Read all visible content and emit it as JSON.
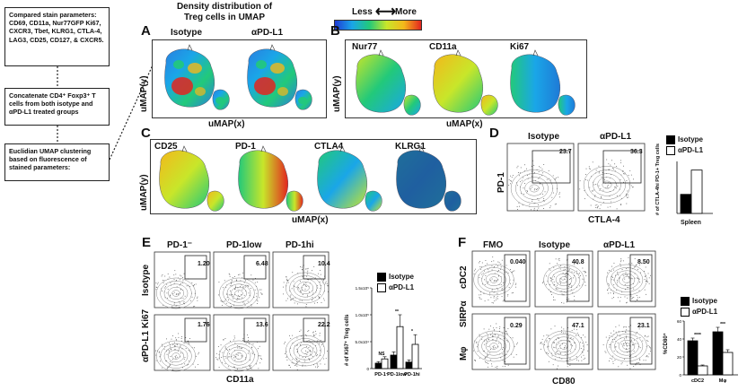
{
  "flow": {
    "box1": "Compared stain parameters: CD69, CD11a, Nur77GFP Ki67, CXCR3, Tbet, KLRG1, CTLA-4, LAG3, CD25, CD127, & CXCR5.",
    "box2": "Concatenate CD4⁺ Foxp3⁺ T cells from both isotype and αPD-L1 treated groups",
    "box3": "Euclidian UMAP clustering based on fluorescence of stained parameters:"
  },
  "header": {
    "density_title": "Density distribution of Treg cells in UMAP",
    "scale_less": "Less",
    "scale_more": "More",
    "scale_colors": [
      "#1f3bd6",
      "#1aa6e8",
      "#22c97a",
      "#c8e62a",
      "#f3b81b",
      "#e3251f"
    ]
  },
  "panelA": {
    "letter": "A",
    "titles": [
      "Isotype",
      "αPD-L1"
    ],
    "xlabel": "uMAP(x)",
    "ylabel": "uMAP(y)"
  },
  "panelB": {
    "letter": "B",
    "titles": [
      "Nur77",
      "CD11a",
      "Ki67"
    ],
    "xlabel": "uMAP(x)",
    "ylabel": "uMAP(y)"
  },
  "panelC": {
    "letter": "C",
    "titles": [
      "CD25",
      "PD-1",
      "CTLA4",
      "KLRG1"
    ],
    "xlabel": "uMAP(x)",
    "ylabel": "uMAP(y)"
  },
  "panelD": {
    "letter": "D",
    "titles": [
      "Isotype",
      "αPD-L1"
    ],
    "gates": [
      "23.7",
      "36.3"
    ],
    "xlabel": "CTLA-4",
    "ylabel": "PD-1",
    "legend": [
      "Isotype",
      "αPD-L1"
    ],
    "bar_ylabel": "# of CTLA-4hi PD-1+ Treg cells",
    "bar_xlabel": "Spleen"
  },
  "panelE": {
    "letter": "E",
    "col_titles": [
      "PD-1⁻",
      "PD-1low",
      "PD-1hi"
    ],
    "row_labels": [
      "Isotype",
      "αPD-L1"
    ],
    "gates_top": [
      "1.20",
      "6.48",
      "10.4"
    ],
    "gates_bottom": [
      "1.76",
      "13.6",
      "22.2"
    ],
    "xlabel": "CD11a",
    "ylabel": "Ki67",
    "legend": [
      "Isotype",
      "αPD-L1"
    ],
    "bar_ylabel": "# of Ki67⁺ Treg cells",
    "yticks": [
      "1.5x10⁵",
      "1.0x10⁵",
      "5.0x10⁴",
      "0"
    ],
    "categories": [
      "PD-1⁻",
      "PD-1low",
      "PD-1hi"
    ],
    "sig": [
      "NS",
      "**",
      "*"
    ]
  },
  "panelF": {
    "letter": "F",
    "col_titles": [
      "FMO",
      "Isotype",
      "αPD-L1"
    ],
    "row_labels": [
      "cDC2",
      "Mφ"
    ],
    "gates_top": [
      "0.040",
      "40.8",
      "8.50"
    ],
    "gates_bottom": [
      "0.29",
      "47.1",
      "23.1"
    ],
    "xlabel": "CD80",
    "ylabel": "SIRPα",
    "legend": [
      "Isotype",
      "αPD-L1"
    ],
    "bar_ylabel": "%CD80⁺",
    "yticks": [
      "60",
      "40",
      "20",
      "0"
    ],
    "categories": [
      "cDC2",
      "Mφ"
    ],
    "sig": [
      "****",
      "***"
    ]
  },
  "chart_data": [
    {
      "type": "bar",
      "categories": [
        "Spleen"
      ],
      "series": [
        {
          "name": "Isotype",
          "values": [
            2.2
          ]
        },
        {
          "name": "αPD-L1",
          "values": [
            5.0
          ]
        }
      ],
      "ylim": [
        0,
        6
      ],
      "xlabel": "Spleen",
      "ylabel": "# of CTLA-4hi PD-1+ Treg cells"
    },
    {
      "type": "bar",
      "categories": [
        "PD-1⁻",
        "PD-1low",
        "PD-1hi"
      ],
      "series": [
        {
          "name": "Isotype",
          "values": [
            10000,
            25000,
            12000
          ]
        },
        {
          "name": "αPD-L1",
          "values": [
            18000,
            78000,
            45000
          ]
        }
      ],
      "errors": [
        [
          3000,
          6000,
          4000
        ],
        [
          4000,
          22000,
          18000
        ]
      ],
      "ylim": [
        0,
        150000
      ],
      "ylabel": "# of Ki67⁺ Treg cells"
    },
    {
      "type": "bar",
      "categories": [
        "cDC2",
        "Mφ"
      ],
      "series": [
        {
          "name": "Isotype",
          "values": [
            38,
            48
          ]
        },
        {
          "name": "αPD-L1",
          "values": [
            10,
            25
          ]
        }
      ],
      "errors": [
        [
          3,
          5
        ],
        [
          1,
          3
        ]
      ],
      "ylim": [
        0,
        60
      ],
      "ylabel": "%CD80⁺"
    }
  ]
}
